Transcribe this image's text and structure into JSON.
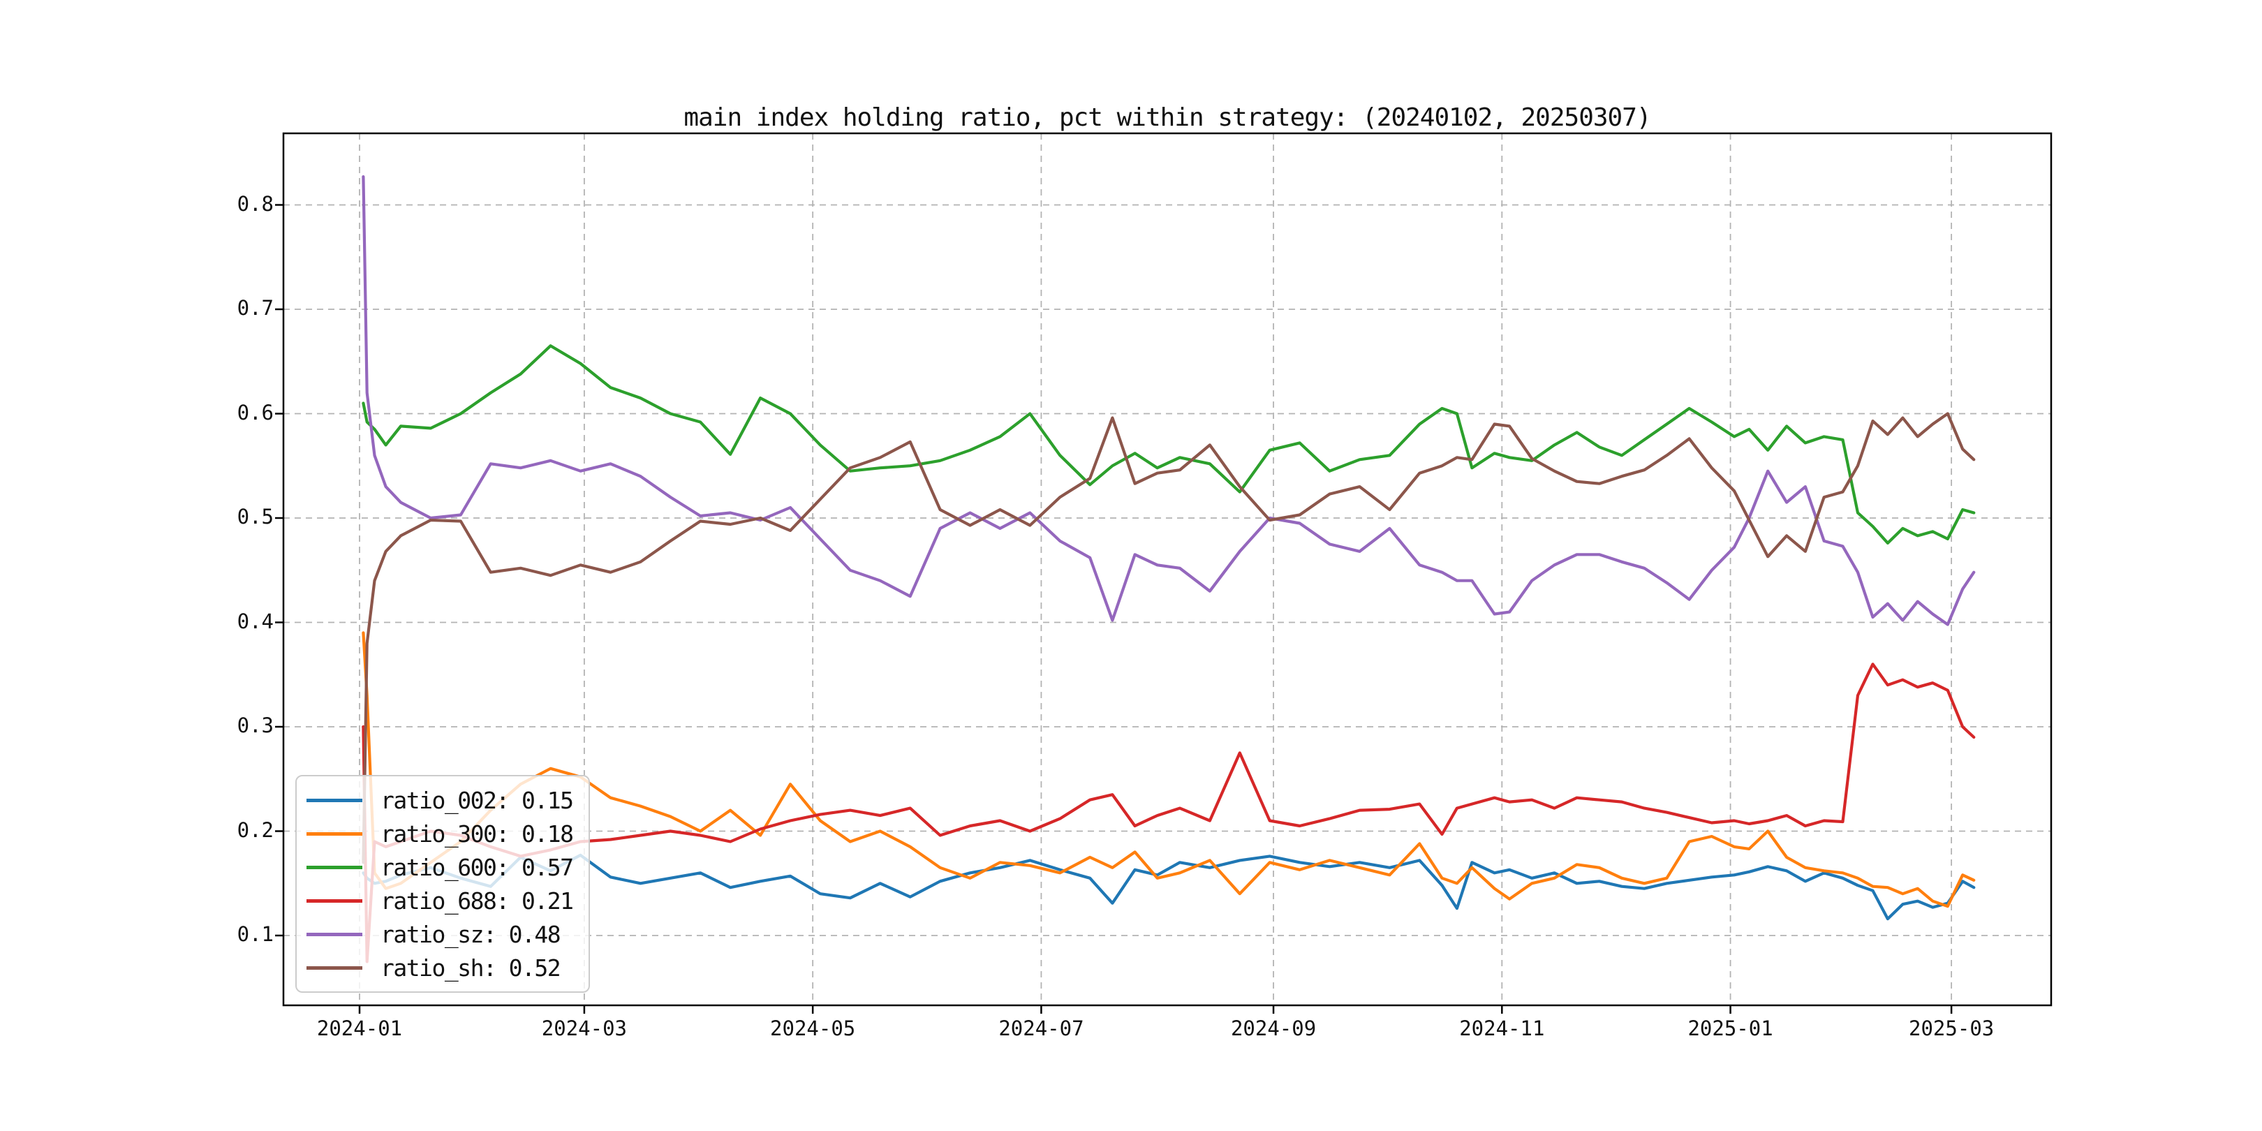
{
  "title": "main index holding ratio, pct within strategy: (20240102, 20250307)",
  "legend": {
    "position": "lower left",
    "items": [
      {
        "name": "ratio_002",
        "label": "ratio_002: 0.15",
        "color": "#1f77b4"
      },
      {
        "name": "ratio_300",
        "label": "ratio_300: 0.18",
        "color": "#ff7f0e"
      },
      {
        "name": "ratio_600",
        "label": "ratio_600: 0.57",
        "color": "#2ca02c"
      },
      {
        "name": "ratio_688",
        "label": "ratio_688: 0.21",
        "color": "#d62728"
      },
      {
        "name": "ratio_sz",
        "label": "ratio_sz: 0.48",
        "color": "#9467bd"
      },
      {
        "name": "ratio_sh",
        "label": "ratio_sh: 0.52",
        "color": "#8c564b"
      }
    ]
  },
  "axes": {
    "x_ticks": [
      {
        "label": "2024-01",
        "day": -1
      },
      {
        "label": "2024-03",
        "day": 59
      },
      {
        "label": "2024-05",
        "day": 120
      },
      {
        "label": "2024-07",
        "day": 181
      },
      {
        "label": "2024-09",
        "day": 243
      },
      {
        "label": "2024-11",
        "day": 304
      },
      {
        "label": "2025-01",
        "day": 365
      },
      {
        "label": "2025-03",
        "day": 424
      }
    ],
    "y_ticks": [
      {
        "label": "0.1",
        "value": 0.1
      },
      {
        "label": "0.2",
        "value": 0.2
      },
      {
        "label": "0.3",
        "value": 0.3
      },
      {
        "label": "0.4",
        "value": 0.4
      },
      {
        "label": "0.5",
        "value": 0.5
      },
      {
        "label": "0.6",
        "value": 0.6
      },
      {
        "label": "0.7",
        "value": 0.7
      },
      {
        "label": "0.8",
        "value": 0.8
      }
    ]
  },
  "chart_data": {
    "type": "line",
    "title": "main index holding ratio, pct within strategy: (20240102, 20250307)",
    "xlabel": "",
    "ylabel": "",
    "grid": true,
    "grid_style": "dashed",
    "legend_position": "lower left",
    "date_start": "2024-01-02",
    "date_end": "2025-03-07",
    "x_unit": "calendar days since 2024-01-02",
    "xlim_days": [
      -21.5,
      451.5
    ],
    "ylim": [
      0.037,
      0.865
    ],
    "days": [
      0,
      1,
      3,
      6,
      10,
      18,
      26,
      34,
      42,
      50,
      58,
      66,
      74,
      82,
      90,
      98,
      106,
      114,
      122,
      130,
      138,
      146,
      154,
      162,
      170,
      178,
      186,
      194,
      200,
      206,
      212,
      218,
      226,
      234,
      242,
      250,
      258,
      266,
      274,
      282,
      288,
      292,
      296,
      302,
      306,
      312,
      318,
      324,
      330,
      336,
      342,
      348,
      354,
      360,
      366,
      370,
      375,
      380,
      385,
      390,
      395,
      399,
      403,
      407,
      411,
      415,
      419,
      423,
      427,
      430
    ],
    "series": [
      {
        "name": "ratio_002",
        "color": "#1f77b4",
        "legend_value": 0.15,
        "values": [
          0.16,
          0.155,
          0.15,
          0.152,
          0.158,
          0.165,
          0.155,
          0.147,
          0.175,
          0.162,
          0.177,
          0.156,
          0.15,
          0.155,
          0.16,
          0.146,
          0.152,
          0.157,
          0.14,
          0.136,
          0.15,
          0.137,
          0.152,
          0.16,
          0.165,
          0.172,
          0.163,
          0.155,
          0.131,
          0.163,
          0.158,
          0.17,
          0.165,
          0.172,
          0.176,
          0.17,
          0.166,
          0.17,
          0.165,
          0.172,
          0.148,
          0.126,
          0.17,
          0.16,
          0.163,
          0.155,
          0.16,
          0.15,
          0.152,
          0.147,
          0.145,
          0.15,
          0.153,
          0.156,
          0.158,
          0.161,
          0.166,
          0.162,
          0.152,
          0.16,
          0.155,
          0.148,
          0.143,
          0.116,
          0.13,
          0.133,
          0.127,
          0.131,
          0.152,
          0.146
        ]
      },
      {
        "name": "ratio_300",
        "color": "#ff7f0e",
        "legend_value": 0.18,
        "values": [
          0.39,
          0.33,
          0.16,
          0.145,
          0.15,
          0.17,
          0.19,
          0.22,
          0.245,
          0.26,
          0.252,
          0.232,
          0.224,
          0.214,
          0.2,
          0.22,
          0.196,
          0.245,
          0.21,
          0.19,
          0.2,
          0.185,
          0.165,
          0.155,
          0.17,
          0.167,
          0.16,
          0.175,
          0.165,
          0.18,
          0.155,
          0.16,
          0.172,
          0.14,
          0.17,
          0.163,
          0.172,
          0.165,
          0.158,
          0.188,
          0.155,
          0.15,
          0.165,
          0.145,
          0.135,
          0.15,
          0.155,
          0.168,
          0.165,
          0.155,
          0.15,
          0.155,
          0.19,
          0.195,
          0.185,
          0.183,
          0.2,
          0.175,
          0.165,
          0.162,
          0.16,
          0.155,
          0.147,
          0.146,
          0.14,
          0.145,
          0.133,
          0.128,
          0.158,
          0.153
        ]
      },
      {
        "name": "ratio_600",
        "color": "#2ca02c",
        "legend_value": 0.57,
        "values": [
          0.61,
          0.592,
          0.585,
          0.57,
          0.588,
          0.586,
          0.6,
          0.62,
          0.638,
          0.665,
          0.648,
          0.625,
          0.615,
          0.6,
          0.592,
          0.561,
          0.615,
          0.6,
          0.57,
          0.545,
          0.548,
          0.55,
          0.555,
          0.565,
          0.578,
          0.6,
          0.56,
          0.532,
          0.55,
          0.562,
          0.548,
          0.558,
          0.552,
          0.525,
          0.565,
          0.572,
          0.545,
          0.556,
          0.56,
          0.59,
          0.605,
          0.6,
          0.548,
          0.562,
          0.558,
          0.555,
          0.57,
          0.582,
          0.568,
          0.56,
          0.575,
          0.59,
          0.605,
          0.592,
          0.578,
          0.585,
          0.565,
          0.588,
          0.572,
          0.578,
          0.575,
          0.505,
          0.492,
          0.476,
          0.49,
          0.483,
          0.487,
          0.48,
          0.508,
          0.505
        ]
      },
      {
        "name": "ratio_688",
        "color": "#d62728",
        "legend_value": 0.21,
        "values": [
          0.3,
          0.075,
          0.19,
          0.185,
          0.19,
          0.2,
          0.196,
          0.185,
          0.176,
          0.182,
          0.19,
          0.192,
          0.196,
          0.2,
          0.196,
          0.19,
          0.202,
          0.21,
          0.216,
          0.22,
          0.215,
          0.222,
          0.196,
          0.205,
          0.21,
          0.2,
          0.212,
          0.23,
          0.235,
          0.205,
          0.215,
          0.222,
          0.21,
          0.275,
          0.21,
          0.205,
          0.212,
          0.22,
          0.221,
          0.226,
          0.197,
          0.222,
          0.226,
          0.232,
          0.228,
          0.23,
          0.222,
          0.232,
          0.23,
          0.228,
          0.222,
          0.218,
          0.213,
          0.208,
          0.21,
          0.207,
          0.21,
          0.215,
          0.205,
          0.21,
          0.209,
          0.33,
          0.36,
          0.34,
          0.345,
          0.338,
          0.342,
          0.335,
          0.3,
          0.29
        ]
      },
      {
        "name": "ratio_sz",
        "color": "#9467bd",
        "legend_value": 0.48,
        "values": [
          0.827,
          0.62,
          0.56,
          0.53,
          0.515,
          0.5,
          0.503,
          0.552,
          0.548,
          0.555,
          0.545,
          0.552,
          0.54,
          0.52,
          0.502,
          0.505,
          0.498,
          0.51,
          0.48,
          0.45,
          0.44,
          0.425,
          0.49,
          0.505,
          0.49,
          0.505,
          0.478,
          0.462,
          0.402,
          0.465,
          0.455,
          0.452,
          0.43,
          0.468,
          0.5,
          0.495,
          0.475,
          0.468,
          0.49,
          0.455,
          0.448,
          0.44,
          0.44,
          0.408,
          0.41,
          0.44,
          0.455,
          0.465,
          0.465,
          0.458,
          0.452,
          0.438,
          0.422,
          0.45,
          0.472,
          0.5,
          0.545,
          0.515,
          0.53,
          0.478,
          0.473,
          0.448,
          0.405,
          0.418,
          0.402,
          0.42,
          0.408,
          0.398,
          0.432,
          0.448
        ]
      },
      {
        "name": "ratio_sh",
        "color": "#8c564b",
        "legend_value": 0.52,
        "values": [
          0.17,
          0.38,
          0.44,
          0.468,
          0.483,
          0.498,
          0.497,
          0.448,
          0.452,
          0.445,
          0.455,
          0.448,
          0.458,
          0.478,
          0.497,
          0.494,
          0.5,
          0.488,
          0.518,
          0.548,
          0.558,
          0.573,
          0.508,
          0.493,
          0.508,
          0.493,
          0.52,
          0.538,
          0.596,
          0.533,
          0.543,
          0.546,
          0.57,
          0.53,
          0.498,
          0.503,
          0.523,
          0.53,
          0.508,
          0.543,
          0.55,
          0.558,
          0.556,
          0.59,
          0.588,
          0.557,
          0.545,
          0.535,
          0.533,
          0.54,
          0.546,
          0.56,
          0.576,
          0.548,
          0.526,
          0.498,
          0.463,
          0.483,
          0.468,
          0.52,
          0.525,
          0.55,
          0.593,
          0.58,
          0.596,
          0.578,
          0.59,
          0.6,
          0.566,
          0.556
        ]
      }
    ]
  },
  "style": {
    "grid_color": "#b3b3b3",
    "spine_color": "#000000",
    "background": "#ffffff",
    "line_width": 4.2
  }
}
